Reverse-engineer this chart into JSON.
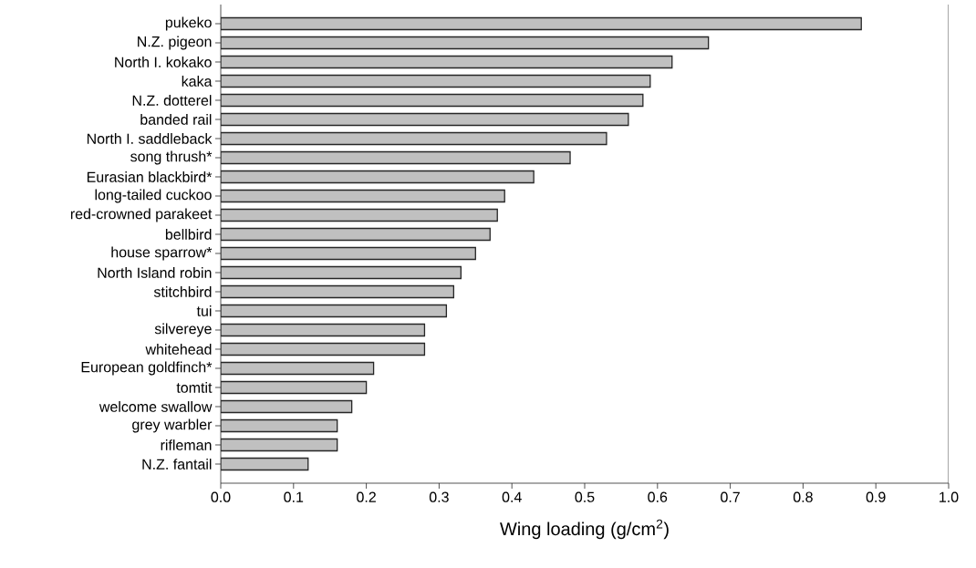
{
  "chart_data": {
    "type": "bar",
    "orientation": "horizontal",
    "xlabel": "Wing loading (g/cm$^{2}$)",
    "categories": [
      "pukeko",
      "N.Z. pigeon",
      "North I. kokako",
      "kaka",
      "N.Z. dotterel",
      "banded rail",
      "North I. saddleback",
      "song thrush*",
      "Eurasian blackbird*",
      "long-tailed cuckoo",
      "red-crowned parakeet",
      "bellbird",
      "house sparrow*",
      "North Island robin",
      "stitchbird",
      "tui",
      "silvereye",
      "whitehead",
      "European goldfinch*",
      "tomtit",
      "welcome swallow",
      "grey warbler",
      "rifleman",
      "N.Z. fantail"
    ],
    "values": [
      0.88,
      0.67,
      0.62,
      0.59,
      0.58,
      0.56,
      0.53,
      0.48,
      0.43,
      0.39,
      0.38,
      0.37,
      0.35,
      0.33,
      0.32,
      0.31,
      0.28,
      0.28,
      0.21,
      0.2,
      0.18,
      0.16,
      0.16,
      0.12
    ],
    "color": "#c0c0c0",
    "xlim": [
      0,
      1.0
    ],
    "xticks": [
      {
        "value": 0,
        "label": "0.0"
      },
      0.1,
      0.2,
      0.3,
      0.4,
      0.5,
      0.6,
      0.7,
      0.8,
      0.9,
      {
        "value": 1.0,
        "label": "1.0"
      }
    ]
  }
}
